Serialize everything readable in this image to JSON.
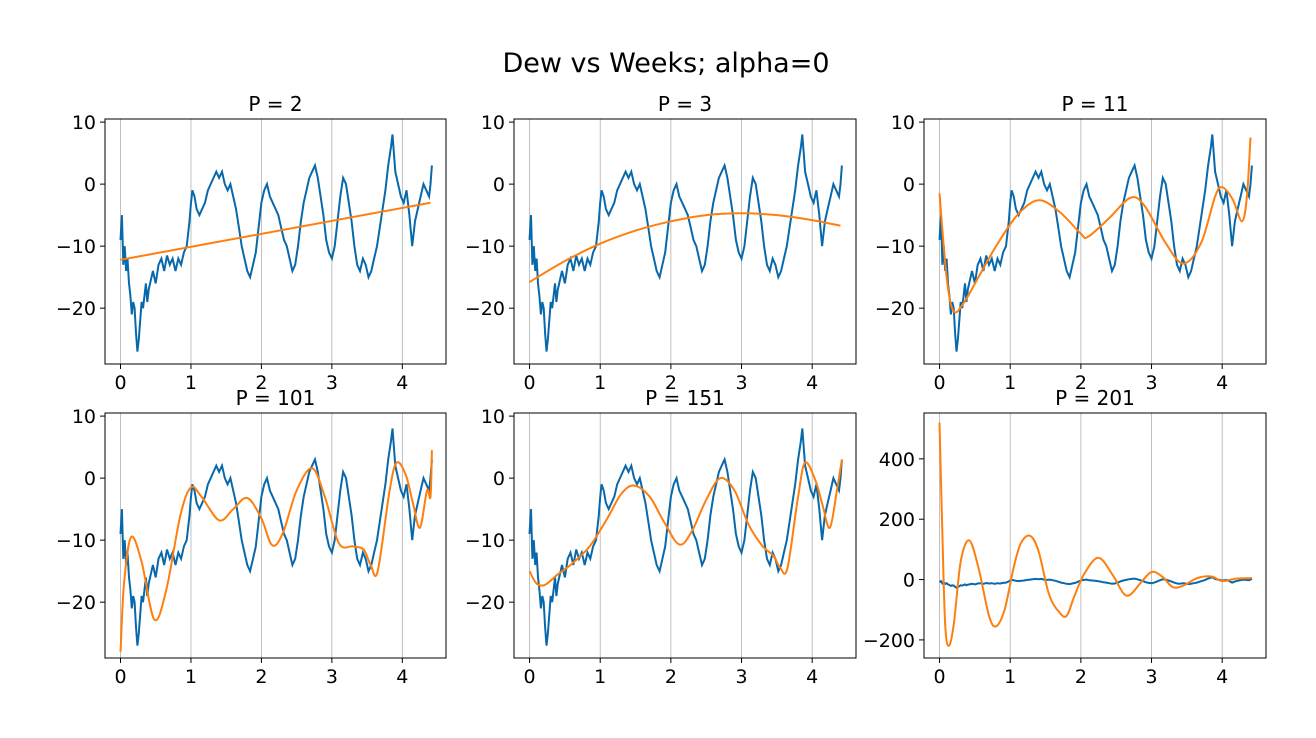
{
  "title": "Dew vs Weeks; alpha=0",
  "colors": {
    "data": "#0868ac",
    "fit": "#ff7f0e",
    "grid": "#b0b0b0"
  },
  "chart_data": [
    {
      "type": "line",
      "title": "P = 2",
      "xticks": [
        "0",
        "1",
        "2",
        "3",
        "4"
      ],
      "yticks": [
        "10",
        "0",
        "−10",
        "−20"
      ],
      "xlim": [
        -0.22,
        4.62
      ],
      "ylim": [
        -29,
        10.5
      ],
      "grid": "vertical",
      "fit": {
        "x": [
          0,
          4.4
        ],
        "y": [
          -12.2,
          -3.0
        ]
      }
    },
    {
      "type": "line",
      "title": "P = 3",
      "xticks": [
        "0",
        "1",
        "2",
        "3",
        "4"
      ],
      "yticks": [
        "10",
        "0",
        "−10",
        "−20"
      ],
      "xlim": [
        -0.22,
        4.62
      ],
      "ylim": [
        -29,
        10.5
      ],
      "grid": "vertical",
      "fit": {
        "x": [
          0,
          0.5,
          1,
          1.5,
          2,
          2.5,
          3,
          3.5,
          4,
          4.4
        ],
        "y": [
          -15.8,
          -12.4,
          -9.6,
          -7.5,
          -6.0,
          -5.0,
          -4.7,
          -5.0,
          -5.8,
          -6.7
        ]
      }
    },
    {
      "type": "line",
      "title": "P = 11",
      "xticks": [
        "0",
        "1",
        "2",
        "3",
        "4"
      ],
      "yticks": [
        "10",
        "0",
        "−10",
        "−20"
      ],
      "xlim": [
        -0.22,
        4.62
      ],
      "ylim": [
        -29,
        10.5
      ],
      "grid": "vertical",
      "fit": {
        "x": [
          0,
          0.1,
          0.2,
          0.35,
          0.55,
          0.8,
          1.1,
          1.4,
          1.7,
          2.0,
          2.1,
          2.4,
          2.7,
          2.9,
          3.2,
          3.45,
          3.7,
          3.9,
          4.0,
          4.15,
          4.28,
          4.35,
          4.4
        ],
        "y": [
          -1.5,
          -15.0,
          -20.5,
          -19.0,
          -15.0,
          -10.0,
          -5.0,
          -2.6,
          -4.5,
          -8.0,
          -8.5,
          -5.5,
          -2.2,
          -3.5,
          -9.5,
          -12.8,
          -9.5,
          -2.0,
          -0.5,
          -2.5,
          -6.0,
          -2.0,
          7.5
        ]
      }
    },
    {
      "type": "line",
      "title": "P = 101",
      "xticks": [
        "0",
        "1",
        "2",
        "3",
        "4"
      ],
      "yticks": [
        "10",
        "0",
        "−10",
        "−20"
      ],
      "xlim": [
        -0.22,
        4.62
      ],
      "ylim": [
        -29,
        10.5
      ],
      "grid": "vertical",
      "fit": {
        "x": [
          0,
          0.05,
          0.15,
          0.3,
          0.48,
          0.65,
          0.85,
          1.0,
          1.15,
          1.4,
          1.6,
          1.8,
          2.0,
          2.15,
          2.3,
          2.5,
          2.72,
          2.9,
          3.1,
          3.3,
          3.45,
          3.55,
          3.65,
          3.82,
          3.92,
          4.05,
          4.15,
          4.25,
          4.35,
          4.4,
          4.42
        ],
        "y": [
          -28,
          -17,
          -9.5,
          -13.5,
          -22.8,
          -18,
          -6,
          -1.5,
          -3,
          -6.8,
          -5,
          -3.2,
          -6.5,
          -10.8,
          -9,
          -2,
          1.6,
          -3,
          -10.5,
          -11,
          -11.5,
          -14,
          -15,
          -2,
          2.5,
          0.5,
          -4,
          -8,
          -2,
          -3,
          4.5
        ]
      }
    },
    {
      "type": "line",
      "title": "P = 151",
      "xticks": [
        "0",
        "1",
        "2",
        "3",
        "4"
      ],
      "yticks": [
        "10",
        "0",
        "−10",
        "−20"
      ],
      "xlim": [
        -0.22,
        4.62
      ],
      "ylim": [
        -29,
        10.5
      ],
      "grid": "vertical",
      "fit": {
        "x": [
          0,
          0.1,
          0.22,
          0.4,
          0.6,
          0.85,
          1.1,
          1.3,
          1.48,
          1.7,
          1.9,
          2.12,
          2.3,
          2.5,
          2.7,
          2.9,
          3.1,
          3.3,
          3.45,
          3.55,
          3.65,
          3.8,
          3.9,
          4.05,
          4.15,
          4.25,
          4.35,
          4.42
        ],
        "y": [
          -15,
          -17,
          -17.2,
          -15.5,
          -13.8,
          -11,
          -6.5,
          -2.5,
          -1.2,
          -3,
          -7,
          -10.7,
          -8.5,
          -3.5,
          0,
          -2,
          -7.5,
          -11,
          -12.5,
          -14.5,
          -14.5,
          -3,
          2.5,
          -0.5,
          -4.5,
          -8,
          -2,
          3
        ]
      }
    },
    {
      "type": "line",
      "title": "P = 201",
      "xticks": [
        "0",
        "1",
        "2",
        "3",
        "4"
      ],
      "yticks": [
        "400",
        "200",
        "0",
        "−200"
      ],
      "xlim": [
        -0.22,
        4.62
      ],
      "ylim": [
        -260,
        552
      ],
      "grid": "vertical",
      "fit": {
        "x": [
          0,
          0.04,
          0.08,
          0.13,
          0.2,
          0.3,
          0.42,
          0.55,
          0.7,
          0.8,
          0.92,
          1.05,
          1.15,
          1.28,
          1.4,
          1.55,
          1.7,
          1.8,
          1.9,
          2.05,
          2.25,
          2.45,
          2.6,
          2.7,
          2.85,
          3.0,
          3.15,
          3.3,
          3.45,
          3.65,
          3.85,
          4.0,
          4.2,
          4.42
        ],
        "y": [
          520,
          150,
          -150,
          -220,
          -150,
          60,
          130,
          40,
          -120,
          -155,
          -100,
          40,
          120,
          145,
          95,
          -50,
          -110,
          -120,
          -60,
          20,
          72,
          15,
          -45,
          -50,
          -10,
          25,
          10,
          -25,
          -20,
          5,
          10,
          -5,
          3,
          5
        ]
      }
    }
  ]
}
